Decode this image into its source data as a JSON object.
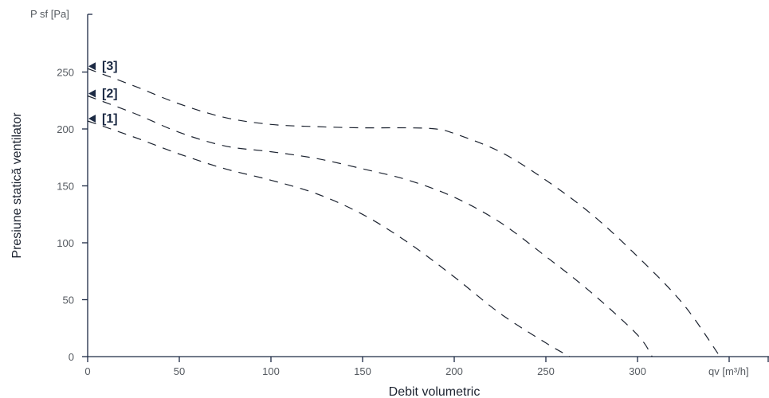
{
  "chart_data": {
    "type": "line",
    "title": "",
    "xlabel": "Debit volumetric",
    "ylabel": "Presiune statică ventilator",
    "x_unit_label": "qv [m³/h]",
    "y_unit_label": "P sf [Pa]",
    "xlim": [
      0,
      350
    ],
    "ylim": [
      0,
      300
    ],
    "x_ticks": [
      0,
      50,
      100,
      150,
      200,
      250,
      300
    ],
    "y_ticks": [
      0,
      50,
      100,
      150,
      200,
      250
    ],
    "grid": false,
    "colors": {
      "axis": "#1c2a44",
      "curve": "#1c2330",
      "tick_text": "#555a60"
    },
    "series": [
      {
        "name": "[1]",
        "x": [
          0,
          25,
          50,
          75,
          100,
          125,
          150,
          175,
          200,
          225,
          250,
          263
        ],
        "y": [
          207,
          193,
          178,
          165,
          155,
          143,
          125,
          100,
          70,
          38,
          12,
          0
        ]
      },
      {
        "name": "[2]",
        "x": [
          0,
          25,
          50,
          75,
          100,
          125,
          150,
          175,
          200,
          225,
          250,
          275,
          300,
          308
        ],
        "y": [
          229,
          214,
          197,
          185,
          180,
          174,
          165,
          155,
          140,
          118,
          88,
          56,
          19,
          0
        ]
      },
      {
        "name": "[3]",
        "x": [
          0,
          25,
          50,
          75,
          100,
          125,
          150,
          175,
          190,
          200,
          225,
          250,
          275,
          300,
          325,
          345
        ],
        "y": [
          253,
          238,
          222,
          210,
          204,
          202,
          201,
          201,
          200,
          196,
          180,
          155,
          125,
          88,
          46,
          0
        ]
      }
    ]
  }
}
